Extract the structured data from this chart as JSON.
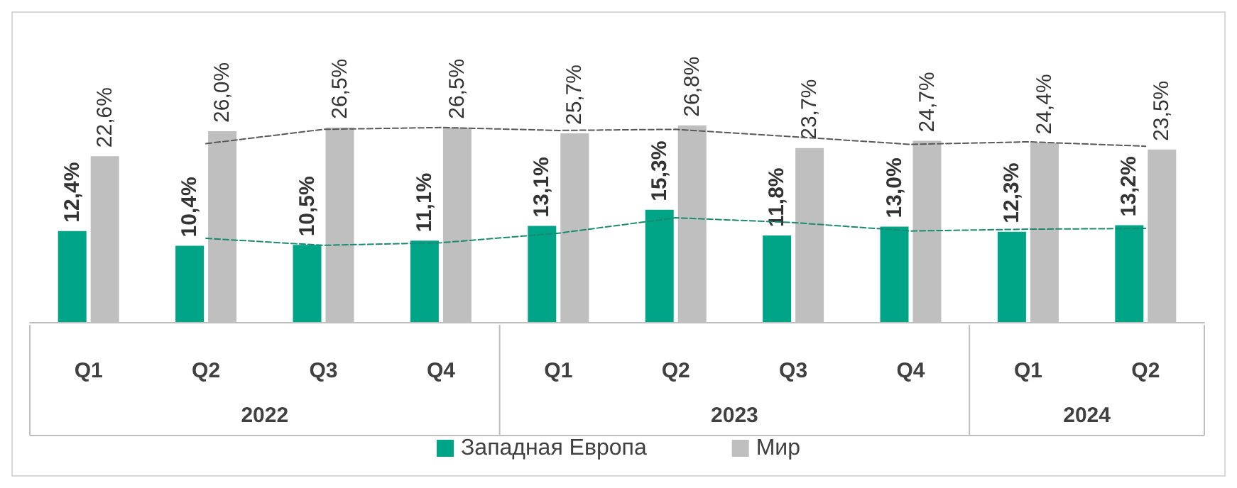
{
  "chart_data": {
    "type": "bar",
    "categories": [
      "Q1",
      "Q2",
      "Q3",
      "Q4",
      "Q1",
      "Q2",
      "Q3",
      "Q4",
      "Q1",
      "Q2"
    ],
    "annotations": [
      "2022",
      "2023",
      "2024"
    ],
    "tick_labels": "x",
    "legend": "bottom",
    "series": [
      {
        "name": "Западная Европа",
        "color": "#00a587",
        "values": [
          12.4,
          10.4,
          10.5,
          11.1,
          13.1,
          15.3,
          11.8,
          13.0,
          12.3,
          13.2
        ],
        "value_labels": [
          "12,4%",
          "10,4%",
          "10,5%",
          "11,1%",
          "13,1%",
          "15,3%",
          "11,8%",
          "13,0%",
          "12,3%",
          "13,2%"
        ]
      },
      {
        "name": "Мир",
        "color": "#bfbfbf",
        "values": [
          22.6,
          26.0,
          26.5,
          26.5,
          25.7,
          26.8,
          23.7,
          24.7,
          24.4,
          23.5
        ],
        "value_labels": [
          "22,6%",
          "26,0%",
          "26,5%",
          "26,5%",
          "25,7%",
          "26,8%",
          "23,7%",
          "24,7%",
          "24,4%",
          "23,5%"
        ]
      },
      {
        "type": "line",
        "line_style": "dashed",
        "marker": "none",
        "color": "#1a8a70",
        "values": [
          null,
          11.4,
          10.45,
          10.8,
          12.1,
          14.2,
          13.55,
          12.4,
          12.65,
          12.75
        ]
      },
      {
        "type": "line",
        "line_style": "dashed",
        "marker": "none",
        "color": "#595959",
        "values": [
          null,
          24.3,
          26.25,
          26.5,
          26.1,
          26.25,
          25.25,
          24.2,
          24.55,
          23.95
        ]
      }
    ]
  }
}
